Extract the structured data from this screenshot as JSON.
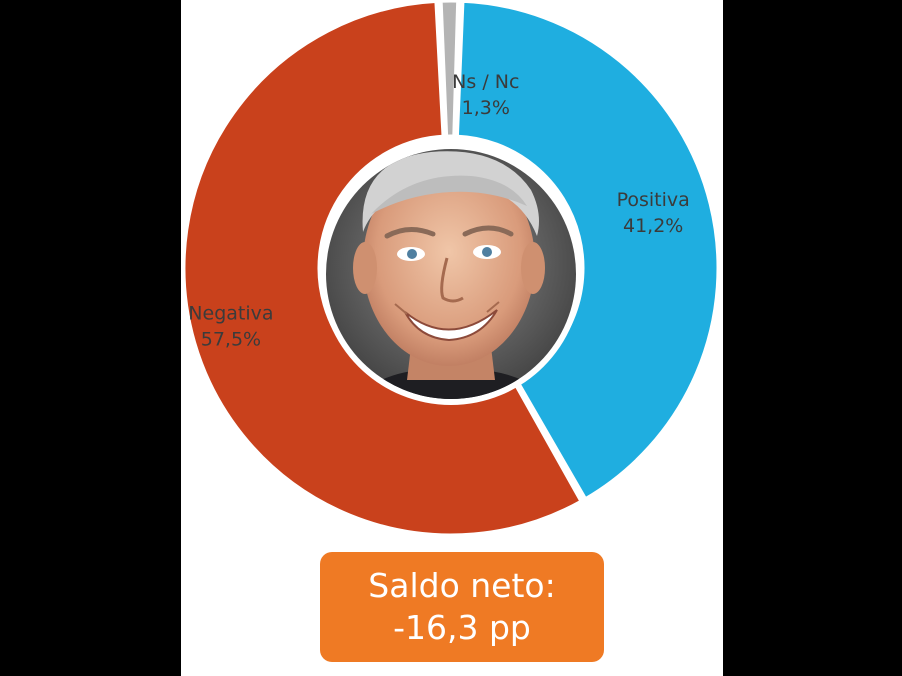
{
  "chart_data": {
    "type": "pie",
    "variant": "donut",
    "title": "",
    "series": [
      {
        "name": "Positiva",
        "value": 41.2,
        "label_name": "Positiva",
        "label_value": "41,2%",
        "color": "#1faee0"
      },
      {
        "name": "Negativa",
        "value": 57.5,
        "label_name": "Negativa",
        "label_value": "57,5%",
        "color": "#c9411c"
      },
      {
        "name": "Ns / Nc",
        "value": 1.3,
        "label_name": "Ns / Nc",
        "label_value": "1,3%",
        "color": "#b4b4b4"
      }
    ],
    "center_image": "portrait-photo",
    "legend": "none"
  },
  "summary": {
    "line1": "Saldo neto:",
    "line2": "-16,3 pp",
    "color": "#ef7a24"
  }
}
